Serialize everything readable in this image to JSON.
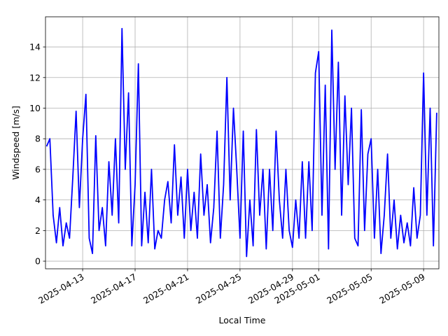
{
  "chart_data": {
    "type": "line",
    "xlabel": "Local Time",
    "ylabel": "Windspeed [m/s]",
    "color": "#0000ff",
    "x": [
      "2025-04-10T06:00:00Z",
      "2025-04-10T12:00:00Z",
      "2025-04-10T18:00:00Z",
      "2025-04-11T00:00:00Z",
      "2025-04-11T06:00:00Z",
      "2025-04-11T12:00:00Z",
      "2025-04-11T18:00:00Z",
      "2025-04-12T00:00:00Z",
      "2025-04-12T06:00:00Z",
      "2025-04-12T12:00:00Z",
      "2025-04-12T18:00:00Z",
      "2025-04-13T00:00:00Z",
      "2025-04-13T06:00:00Z",
      "2025-04-13T12:00:00Z",
      "2025-04-13T18:00:00Z",
      "2025-04-14T00:00:00Z",
      "2025-04-14T06:00:00Z",
      "2025-04-14T12:00:00Z",
      "2025-04-14T18:00:00Z",
      "2025-04-15T00:00:00Z",
      "2025-04-15T06:00:00Z",
      "2025-04-15T12:00:00Z",
      "2025-04-15T18:00:00Z",
      "2025-04-16T00:00:00Z",
      "2025-04-16T06:00:00Z",
      "2025-04-16T12:00:00Z",
      "2025-04-16T18:00:00Z",
      "2025-04-17T00:00:00Z",
      "2025-04-17T06:00:00Z",
      "2025-04-17T12:00:00Z",
      "2025-04-17T18:00:00Z",
      "2025-04-18T00:00:00Z",
      "2025-04-18T06:00:00Z",
      "2025-04-18T12:00:00Z",
      "2025-04-18T18:00:00Z",
      "2025-04-19T00:00:00Z",
      "2025-04-19T06:00:00Z",
      "2025-04-19T12:00:00Z",
      "2025-04-19T18:00:00Z",
      "2025-04-20T00:00:00Z",
      "2025-04-20T06:00:00Z",
      "2025-04-20T12:00:00Z",
      "2025-04-20T18:00:00Z",
      "2025-04-21T00:00:00Z",
      "2025-04-21T06:00:00Z",
      "2025-04-21T12:00:00Z",
      "2025-04-21T18:00:00Z",
      "2025-04-22T00:00:00Z",
      "2025-04-22T06:00:00Z",
      "2025-04-22T12:00:00Z",
      "2025-04-22T18:00:00Z",
      "2025-04-23T00:00:00Z",
      "2025-04-23T06:00:00Z",
      "2025-04-23T12:00:00Z",
      "2025-04-23T18:00:00Z",
      "2025-04-24T00:00:00Z",
      "2025-04-24T06:00:00Z",
      "2025-04-24T12:00:00Z",
      "2025-04-24T18:00:00Z",
      "2025-04-25T00:00:00Z",
      "2025-04-25T06:00:00Z",
      "2025-04-25T12:00:00Z",
      "2025-04-25T18:00:00Z",
      "2025-04-26T00:00:00Z",
      "2025-04-26T06:00:00Z",
      "2025-04-26T12:00:00Z",
      "2025-04-26T18:00:00Z",
      "2025-04-27T00:00:00Z",
      "2025-04-27T06:00:00Z",
      "2025-04-27T12:00:00Z",
      "2025-04-27T18:00:00Z",
      "2025-04-28T00:00:00Z",
      "2025-04-28T06:00:00Z",
      "2025-04-28T12:00:00Z",
      "2025-04-28T18:00:00Z",
      "2025-04-29T00:00:00Z",
      "2025-04-29T06:00:00Z",
      "2025-04-29T12:00:00Z",
      "2025-04-29T18:00:00Z",
      "2025-04-30T00:00:00Z",
      "2025-04-30T06:00:00Z",
      "2025-04-30T12:00:00Z",
      "2025-04-30T18:00:00Z",
      "2025-05-01T00:00:00Z",
      "2025-05-01T06:00:00Z",
      "2025-05-01T12:00:00Z",
      "2025-05-01T18:00:00Z",
      "2025-05-02T00:00:00Z",
      "2025-05-02T06:00:00Z",
      "2025-05-02T12:00:00Z",
      "2025-05-02T18:00:00Z",
      "2025-05-03T00:00:00Z",
      "2025-05-03T06:00:00Z",
      "2025-05-03T12:00:00Z",
      "2025-05-03T18:00:00Z",
      "2025-05-04T00:00:00Z",
      "2025-05-04T06:00:00Z",
      "2025-05-04T12:00:00Z",
      "2025-05-04T18:00:00Z",
      "2025-05-05T00:00:00Z",
      "2025-05-05T06:00:00Z",
      "2025-05-05T12:00:00Z",
      "2025-05-05T18:00:00Z",
      "2025-05-06T00:00:00Z",
      "2025-05-06T06:00:00Z",
      "2025-05-06T12:00:00Z",
      "2025-05-06T18:00:00Z",
      "2025-05-07T00:00:00Z",
      "2025-05-07T06:00:00Z",
      "2025-05-07T12:00:00Z",
      "2025-05-07T18:00:00Z",
      "2025-05-08T00:00:00Z",
      "2025-05-08T06:00:00Z",
      "2025-05-08T12:00:00Z",
      "2025-05-08T18:00:00Z",
      "2025-05-09T00:00:00Z",
      "2025-05-09T06:00:00Z",
      "2025-05-09T12:00:00Z",
      "2025-05-09T18:00:00Z",
      "2025-05-10T00:00:00Z"
    ],
    "values": [
      7.5,
      8,
      3,
      1.2,
      3.5,
      1.0,
      2.5,
      1.5,
      5.5,
      9.8,
      3.5,
      8,
      10.9,
      1.5,
      0.5,
      8.2,
      2,
      3.5,
      1,
      6.5,
      3,
      8,
      2.5,
      15.2,
      6,
      11,
      1,
      5,
      12.9,
      1,
      4.5,
      1.2,
      6,
      0.8,
      2,
      1.5,
      4,
      5.2,
      2.5,
      7.6,
      3,
      5.5,
      1.5,
      6,
      2,
      4.5,
      1.5,
      7,
      3,
      5,
      1.2,
      3.5,
      8.5,
      1.5,
      5,
      12,
      4,
      10,
      6,
      1.5,
      8.5,
      0.3,
      4,
      1.0,
      8.6,
      3,
      6,
      0.8,
      6,
      2,
      8.5,
      4,
      1.5,
      6,
      2,
      0.9,
      4,
      1.5,
      6.5,
      1.5,
      6.5,
      2,
      12.3,
      13.7,
      3,
      11.5,
      0.8,
      15.1,
      6,
      13,
      3,
      10.8,
      5,
      10,
      1.5,
      1.0,
      9.9,
      2,
      7,
      8,
      1.5,
      6,
      0.5,
      3,
      7,
      1.5,
      4,
      0.8,
      3,
      1.2,
      2.5,
      1.0,
      4.8,
      1.5,
      3,
      12.3,
      3,
      10,
      1,
      9.7
    ],
    "xlim": [
      "2025-04-10T04:00:00Z",
      "2025-05-10T04:00:00Z"
    ],
    "xticks": [
      "2025-04-13",
      "2025-04-17",
      "2025-04-21",
      "2025-04-25",
      "2025-04-29",
      "2025-05-01",
      "2025-05-05",
      "2025-05-09"
    ],
    "ylim": [
      -0.5,
      15.97
    ],
    "yticks": [
      0,
      2,
      4,
      6,
      8,
      10,
      12,
      14
    ],
    "grid": true
  }
}
